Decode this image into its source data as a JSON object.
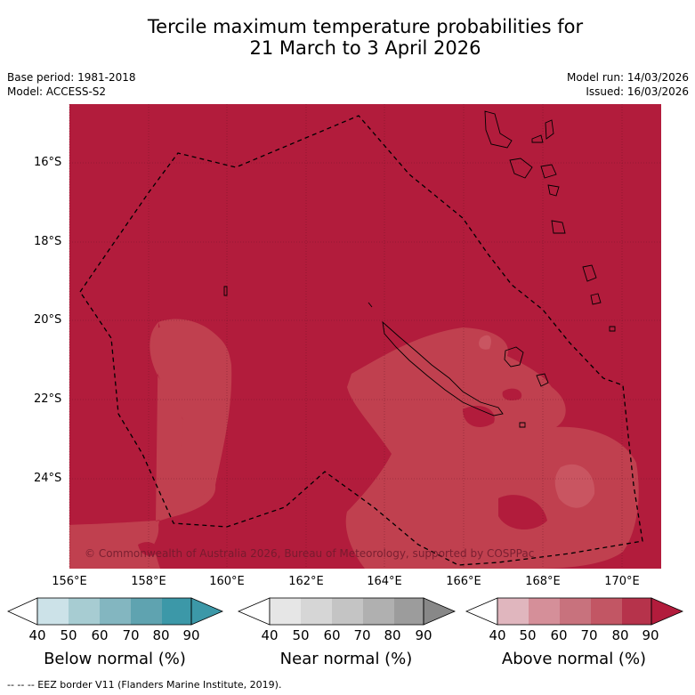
{
  "title_line1": "Tercile maximum temperature probabilities for",
  "title_line2": "21 March to 3 April 2026",
  "base_period": "Base period: 1981-2018",
  "model": "Model: ACCESS-S2",
  "model_run": "Model run: 14/03/2026",
  "issued": "Issued: 16/03/2026",
  "lat_labels": [
    "16°S",
    "18°S",
    "20°S",
    "22°S",
    "24°S"
  ],
  "lon_labels": [
    "156°E",
    "158°E",
    "160°E",
    "162°E",
    "164°E",
    "166°E",
    "168°E",
    "170°E"
  ],
  "copyright": "© Commonwealth of Australia 2026, Bureau of Meteorology, supported by COSPPac",
  "colorbars": [
    {
      "name": "below",
      "label": "Below normal (%)",
      "ticks": [
        "40",
        "50",
        "60",
        "70",
        "80",
        "90"
      ],
      "colors": [
        "#ffffff",
        "#cce2e8",
        "#a7ccd2",
        "#83b6c0",
        "#5fa3b0",
        "#3c98a8"
      ]
    },
    {
      "name": "near",
      "label": "Near normal (%)",
      "ticks": [
        "40",
        "50",
        "60",
        "70",
        "80",
        "90"
      ],
      "colors": [
        "#ffffff",
        "#e6e6e6",
        "#d6d6d6",
        "#c4c4c4",
        "#b0b0b0",
        "#9c9c9c",
        "#888888"
      ]
    },
    {
      "name": "above",
      "label": "Above normal (%)",
      "ticks": [
        "40",
        "50",
        "60",
        "70",
        "80",
        "90"
      ],
      "colors": [
        "#ffffff",
        "#e0b6be",
        "#d58f99",
        "#c8727d",
        "#c25664",
        "#b6334b",
        "#b21c3c"
      ]
    }
  ],
  "footer": "--  --  -- EEZ border V11 (Flanders Marine Institute, 2019).",
  "map_colors": {
    "high": "#b21c3c",
    "medium": "#c0404f"
  }
}
